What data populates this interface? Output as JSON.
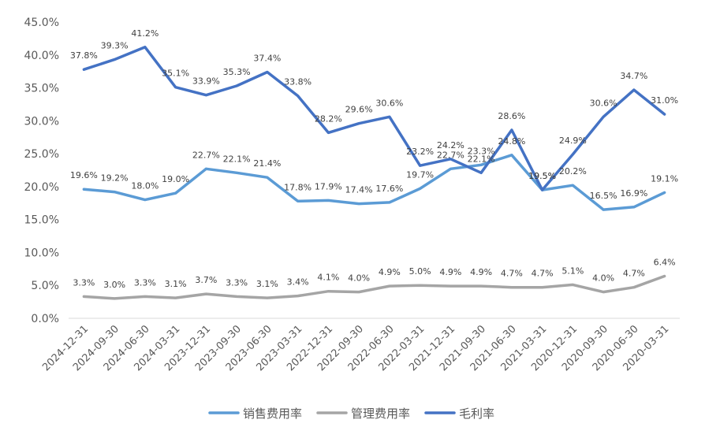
{
  "chart_data": {
    "type": "line",
    "categories": [
      "2024-12-31",
      "2024-09-30",
      "2024-06-30",
      "2024-03-31",
      "2023-12-31",
      "2023-09-30",
      "2023-06-30",
      "2023-03-31",
      "2022-12-31",
      "2022-09-30",
      "2022-06-30",
      "2022-03-31",
      "2021-12-31",
      "2021-09-30",
      "2021-06-30",
      "2021-03-31",
      "2020-12-31",
      "2020-09-30",
      "2020-06-30",
      "2020-03-31"
    ],
    "ylim": [
      0,
      45
    ],
    "yticks": [
      "0.0%",
      "5.0%",
      "10.0%",
      "15.0%",
      "20.0%",
      "25.0%",
      "30.0%",
      "35.0%",
      "40.0%",
      "45.0%"
    ],
    "ytick_values": [
      0,
      5,
      10,
      15,
      20,
      25,
      30,
      35,
      40,
      45
    ],
    "grid": false,
    "legend_position": "bottom",
    "series": [
      {
        "name": "销售费用率",
        "color": "#5B9BD5",
        "values": [
          19.6,
          19.2,
          18.0,
          19.0,
          22.7,
          22.1,
          21.4,
          17.8,
          17.9,
          17.4,
          17.6,
          19.7,
          22.7,
          23.3,
          24.8,
          19.5,
          20.2,
          16.5,
          16.9,
          19.1
        ],
        "labels": [
          "19.6%",
          "19.2%",
          "18.0%",
          "19.0%",
          "22.7%",
          "22.1%",
          "21.4%",
          "17.8%",
          "17.9%",
          "17.4%",
          "17.6%",
          "19.7%",
          "22.7%",
          "23.3%",
          "24.8%",
          "19.5%",
          "20.2%",
          "16.5%",
          "16.9%",
          "19.1%"
        ]
      },
      {
        "name": "管理费用率",
        "color": "#A5A5A5",
        "values": [
          3.3,
          3.0,
          3.3,
          3.1,
          3.7,
          3.3,
          3.1,
          3.4,
          4.1,
          4.0,
          4.9,
          5.0,
          4.9,
          4.9,
          4.7,
          4.7,
          5.1,
          4.0,
          4.7,
          6.4
        ],
        "labels": [
          "3.3%",
          "3.0%",
          "3.3%",
          "3.1%",
          "3.7%",
          "3.3%",
          "3.1%",
          "3.4%",
          "4.1%",
          "4.0%",
          "4.9%",
          "5.0%",
          "4.9%",
          "4.9%",
          "4.7%",
          "4.7%",
          "5.1%",
          "4.0%",
          "4.7%",
          "6.4%"
        ]
      },
      {
        "name": "毛利率",
        "color": "#4472C4",
        "values": [
          37.8,
          39.3,
          41.2,
          35.1,
          33.9,
          35.3,
          37.4,
          33.8,
          28.2,
          29.6,
          30.6,
          23.2,
          24.2,
          22.1,
          28.6,
          19.5,
          24.9,
          30.6,
          34.7,
          31.0
        ],
        "labels": [
          "37.8%",
          "39.3%",
          "41.2%",
          "35.1%",
          "33.9%",
          "35.3%",
          "37.4%",
          "33.8%",
          "28.2%",
          "29.6%",
          "30.6%",
          "23.2%",
          "24.2%",
          "22.1%",
          "28.6%",
          "19.5%",
          "24.9%",
          "30.6%",
          "34.7%",
          "31.0%"
        ]
      }
    ]
  }
}
